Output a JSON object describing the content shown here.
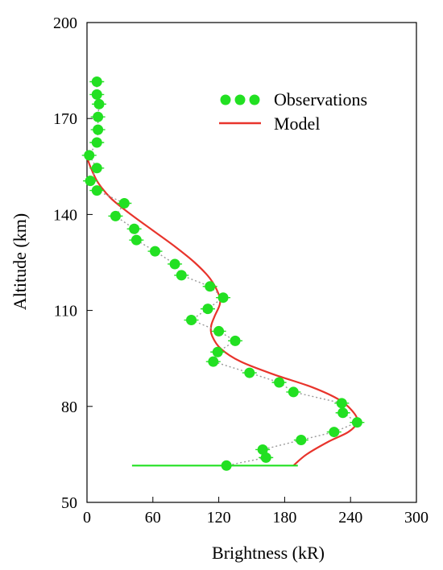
{
  "chart_data": {
    "type": "scatter",
    "title": "",
    "xlabel": "Brightness (kR)",
    "ylabel": "Altitude (km)",
    "xlim": [
      0,
      300
    ],
    "ylim": [
      50,
      200
    ],
    "xticks": [
      "0",
      "60",
      "120",
      "180",
      "240",
      "300"
    ],
    "yticks": [
      "50",
      "80",
      "110",
      "140",
      "170",
      "200"
    ],
    "xtick_values": [
      0,
      60,
      120,
      180,
      240,
      300
    ],
    "ytick_values": [
      50,
      80,
      110,
      140,
      170,
      200
    ],
    "grid": false,
    "legend_position": "top-right",
    "series": [
      {
        "name": "Observations",
        "kind": "points",
        "color": "#22e022",
        "connector_color": "#999999",
        "x": [
          9,
          9,
          11,
          10,
          10,
          9,
          2,
          9,
          3,
          9,
          34,
          26,
          43,
          45,
          62,
          80,
          86,
          112,
          124,
          110,
          95,
          120,
          135,
          119,
          115,
          148,
          175,
          188,
          232,
          233,
          246,
          225,
          195,
          160,
          163,
          127
        ],
        "y": [
          181.5,
          177.5,
          174.5,
          170.5,
          166.5,
          162.5,
          158.5,
          154.5,
          150.5,
          147.5,
          143.5,
          139.5,
          135.5,
          132,
          128.5,
          124.5,
          121,
          117.5,
          114,
          110.5,
          107,
          103.5,
          100.5,
          97,
          94,
          90.5,
          87.5,
          84.5,
          81,
          78,
          75,
          72,
          69.5,
          66.5,
          64,
          61.5
        ],
        "x_error": [
          {
            "y": 61.5,
            "xmin": 41,
            "xmax": 192
          }
        ]
      },
      {
        "name": "Model",
        "kind": "line",
        "color": "#e8342c",
        "x": [
          0,
          3,
          10,
          22,
          40,
          60,
          80,
          98,
          112,
          120,
          121,
          116,
          113,
          114,
          122,
          140,
          170,
          205,
          230,
          243,
          246,
          238,
          220,
          200,
          188
        ],
        "y": [
          158,
          155,
          150,
          145,
          140,
          135,
          130,
          125,
          120,
          115,
          112,
          108,
          105,
          102,
          98,
          94,
          90,
          86,
          82,
          78,
          75,
          72,
          69,
          65,
          61.5
        ]
      }
    ]
  }
}
